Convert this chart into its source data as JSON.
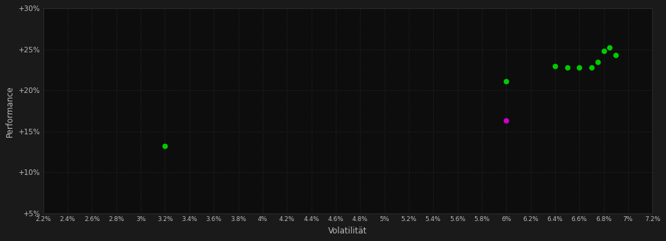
{
  "background_color": "#1a1a1a",
  "plot_bg_color": "#0d0d0d",
  "grid_color": "#2a2a2a",
  "text_color": "#bbbbbb",
  "xlabel": "Volatilität",
  "ylabel": "Performance",
  "xlim": [
    0.022,
    0.072
  ],
  "ylim": [
    0.05,
    0.3
  ],
  "xticks": [
    0.022,
    0.024,
    0.026,
    0.028,
    0.03,
    0.032,
    0.034,
    0.036,
    0.038,
    0.04,
    0.042,
    0.044,
    0.046,
    0.048,
    0.05,
    0.052,
    0.054,
    0.056,
    0.058,
    0.06,
    0.062,
    0.064,
    0.066,
    0.068,
    0.07,
    0.072
  ],
  "xtick_labels": [
    "2.2%",
    "2.4%",
    "2.6%",
    "2.8%",
    "3%",
    "3.2%",
    "3.4%",
    "3.6%",
    "3.8%",
    "4%",
    "4.2%",
    "4.4%",
    "4.6%",
    "4.8%",
    "5%",
    "5.2%",
    "5.4%",
    "5.6%",
    "5.8%",
    "6%",
    "6.2%",
    "6.4%",
    "6.6%",
    "6.8%",
    "7%",
    "7.2%"
  ],
  "yticks": [
    0.05,
    0.1,
    0.15,
    0.2,
    0.25,
    0.3
  ],
  "ytick_labels": [
    "+5%",
    "+10%",
    "+15%",
    "+20%",
    "+25%",
    "+30%"
  ],
  "green_points": [
    [
      0.032,
      0.132
    ],
    [
      0.06,
      0.211
    ],
    [
      0.064,
      0.23
    ],
    [
      0.065,
      0.228
    ],
    [
      0.066,
      0.228
    ],
    [
      0.067,
      0.228
    ],
    [
      0.0675,
      0.235
    ],
    [
      0.068,
      0.248
    ],
    [
      0.0685,
      0.252
    ],
    [
      0.069,
      0.243
    ]
  ],
  "magenta_points": [
    [
      0.06,
      0.163
    ]
  ],
  "point_size": 22
}
